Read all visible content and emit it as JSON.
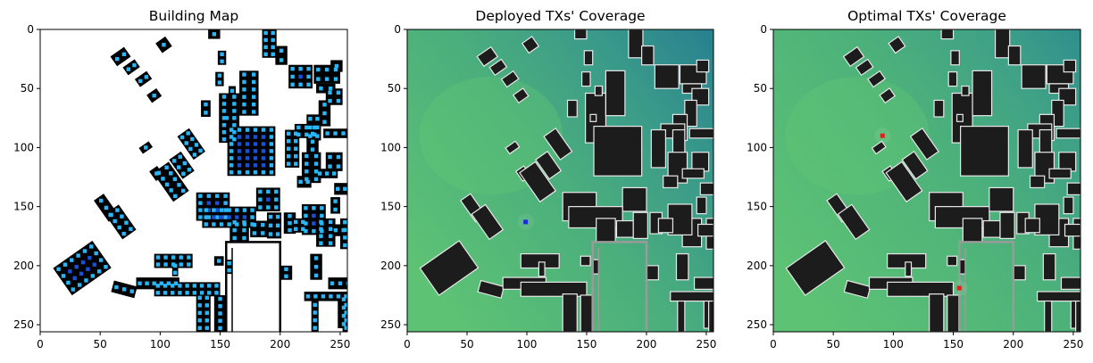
{
  "chart_data": [
    {
      "type": "heatmap",
      "title": "Building Map",
      "xlabel": "",
      "ylabel": "",
      "xlim": [
        0,
        256
      ],
      "ylim": [
        256,
        0
      ],
      "xticks": [
        0,
        50,
        100,
        150,
        200,
        250
      ],
      "yticks": [
        0,
        50,
        100,
        150,
        200,
        250
      ],
      "legend": "none",
      "grid": false,
      "colors": {
        "background": "#ffffff",
        "building": "#000000",
        "rx_dot_edge": "#29b6f6",
        "rx_dot_inner": "#1a4fd8"
      }
    },
    {
      "type": "heatmap",
      "title": "Deployed TXs' Coverage",
      "xlabel": "",
      "ylabel": "",
      "xlim": [
        0,
        256
      ],
      "ylim": [
        256,
        0
      ],
      "xticks": [
        0,
        50,
        100,
        150,
        200,
        250
      ],
      "yticks": [
        0,
        50,
        100,
        150,
        200,
        250
      ],
      "legend": "none",
      "grid": false,
      "tx_marker": {
        "x": 99,
        "y": 163,
        "color": "#1f2bd6"
      },
      "colors": {
        "coverage_high": "#5dc274",
        "coverage_low": "#27808f",
        "building": "#1c1c1c",
        "building_edge": "#e8e8e8"
      }
    },
    {
      "type": "heatmap",
      "title": "Optimal TXs' Coverage",
      "xlabel": "",
      "ylabel": "",
      "xlim": [
        0,
        256
      ],
      "ylim": [
        256,
        0
      ],
      "xticks": [
        0,
        50,
        100,
        150,
        200,
        250
      ],
      "yticks": [
        0,
        50,
        100,
        150,
        200,
        250
      ],
      "legend": "none",
      "grid": false,
      "tx_markers": [
        {
          "x": 91,
          "y": 90,
          "color": "#e0201c"
        },
        {
          "x": 155,
          "y": 219,
          "color": "#e0201c"
        }
      ],
      "colors": {
        "coverage_high": "#5dc274",
        "coverage_low": "#2f8f8e",
        "building": "#1c1c1c",
        "building_edge": "#e8e8e8"
      }
    }
  ]
}
